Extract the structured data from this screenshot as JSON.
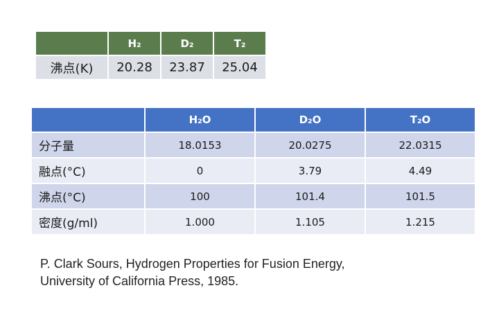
{
  "table1": {
    "header": [
      "",
      "H₂",
      "D₂",
      "T₂"
    ],
    "rows": [
      [
        "沸点(K)",
        "20.28",
        "23.87",
        "25.04"
      ]
    ]
  },
  "table2": {
    "header": [
      "",
      "H₂O",
      "D₂O",
      "T₂O"
    ],
    "rows": [
      [
        "分子量",
        "18.0153",
        "20.0275",
        "22.0315"
      ],
      [
        "融点(°C)",
        "0",
        "3.79",
        "4.49"
      ],
      [
        "沸点(°C)",
        "100",
        "101.4",
        "101.5"
      ],
      [
        "密度(g/ml)",
        "1.000",
        "1.105",
        "1.215"
      ]
    ]
  },
  "citation": {
    "line1": "P. Clark Sours, Hydrogen Properties for Fusion Energy,",
    "line2": "University of California Press, 1985."
  },
  "colors": {
    "table1_header": "#5b7d4e",
    "table2_header": "#4472c4",
    "row_band_dark": "#cfd5ea",
    "row_band_light": "#e9ebf5"
  }
}
